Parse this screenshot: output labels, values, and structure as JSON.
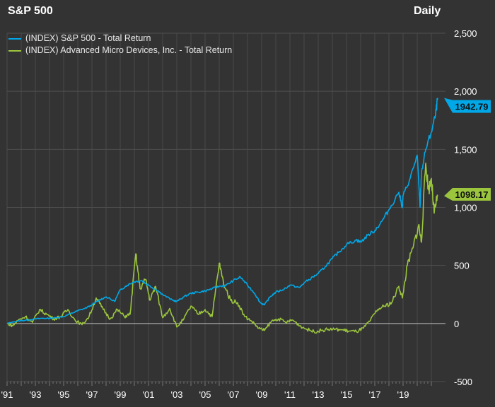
{
  "chart_data": {
    "type": "line",
    "title": "S&P 500",
    "frequency": "Daily",
    "xlim": [
      1991,
      2022
    ],
    "ylim": [
      -500,
      2500
    ],
    "yticks": [
      -500,
      0,
      500,
      1000,
      1500,
      2000,
      2500
    ],
    "ytick_labels": [
      "-500",
      "0",
      "500",
      "1,000",
      "1,500",
      "2,000",
      "2,500"
    ],
    "xticks": [
      1991,
      1993,
      1995,
      1997,
      1999,
      2001,
      2003,
      2005,
      2007,
      2009,
      2011,
      2013,
      2015,
      2017,
      2019
    ],
    "xtick_labels": [
      "'91",
      "'93",
      "'95",
      "'97",
      "'99",
      "'01",
      "'03",
      "'05",
      "'07",
      "'09",
      "'11",
      "'13",
      "'15",
      "'17",
      "'19"
    ],
    "grid": true,
    "legend_placement": "top-left",
    "background": "#333333",
    "series": [
      {
        "name": "(INDEX) S&P 500 - Total Return",
        "color": "#00a8e8",
        "last_value": "1942.79",
        "x": [
          1991,
          1991.5,
          1992,
          1992.5,
          1993,
          1993.5,
          1994,
          1994.5,
          1995,
          1995.5,
          1996,
          1996.5,
          1997,
          1997.5,
          1998,
          1998.6,
          1999,
          1999.5,
          2000,
          2000.5,
          2001,
          2001.7,
          2002,
          2002.7,
          2003,
          2003.5,
          2004,
          2004.5,
          2005,
          2005.5,
          2006,
          2006.5,
          2007,
          2007.5,
          2008,
          2008.5,
          2008.9,
          2009.2,
          2009.6,
          2010,
          2010.5,
          2011,
          2011.7,
          2012,
          2012.5,
          2013,
          2013.5,
          2014,
          2014.5,
          2015,
          2015.7,
          2016,
          2016.5,
          2017,
          2017.5,
          2018,
          2018.7,
          2018.95,
          2019,
          2019.5,
          2020,
          2020.2,
          2020.3,
          2020.6,
          2021,
          2021.3,
          2021.45
        ],
        "y": [
          0,
          15,
          25,
          30,
          40,
          45,
          45,
          50,
          60,
          85,
          110,
          130,
          160,
          200,
          230,
          190,
          290,
          330,
          360,
          370,
          330,
          280,
          250,
          200,
          190,
          230,
          260,
          270,
          280,
          300,
          320,
          330,
          370,
          400,
          330,
          260,
          180,
          160,
          230,
          270,
          290,
          330,
          310,
          350,
          390,
          430,
          490,
          560,
          620,
          680,
          720,
          700,
          760,
          800,
          880,
          980,
          1130,
          1000,
          1100,
          1250,
          1450,
          1000,
          1300,
          1500,
          1650,
          1800,
          1942.79
        ]
      },
      {
        "name": "(INDEX) Advanced Micro Devices, Inc. - Total Return",
        "color": "#9bc53d",
        "last_value": "1098.17",
        "x": [
          1991,
          1991.4,
          1991.8,
          1992.3,
          1992.8,
          1993.3,
          1993.8,
          1994.3,
          1994.8,
          1995.3,
          1995.8,
          1996.3,
          1996.8,
          1997.3,
          1997.8,
          1998.3,
          1998.8,
          1999.3,
          1999.7,
          2000.1,
          2000.4,
          2000.8,
          2001.1,
          2001.5,
          2002,
          2002.5,
          2003,
          2003.5,
          2004,
          2004.5,
          2005,
          2005.5,
          2006,
          2006.3,
          2006.8,
          2007.3,
          2007.8,
          2008.3,
          2008.8,
          2009.2,
          2009.7,
          2010.2,
          2010.7,
          2011.2,
          2011.7,
          2012.2,
          2012.7,
          2013.2,
          2013.7,
          2014.2,
          2014.7,
          2015.2,
          2015.7,
          2016.2,
          2016.7,
          2017.2,
          2017.7,
          2018.2,
          2018.7,
          2018.95,
          2019.3,
          2019.7,
          2020.1,
          2020.3,
          2020.6,
          2020.8,
          2021,
          2021.2,
          2021.45
        ],
        "y": [
          0,
          -20,
          30,
          60,
          10,
          120,
          80,
          40,
          60,
          120,
          30,
          -10,
          60,
          220,
          120,
          40,
          120,
          60,
          80,
          600,
          300,
          380,
          200,
          320,
          50,
          130,
          -30,
          40,
          150,
          80,
          120,
          60,
          520,
          350,
          200,
          180,
          60,
          20,
          -40,
          -60,
          20,
          40,
          10,
          30,
          -20,
          -50,
          -70,
          -60,
          -50,
          -50,
          -55,
          -65,
          -70,
          -40,
          30,
          120,
          150,
          180,
          320,
          220,
          500,
          650,
          850,
          700,
          1380,
          1150,
          1250,
          950,
          1098.17
        ]
      }
    ]
  }
}
